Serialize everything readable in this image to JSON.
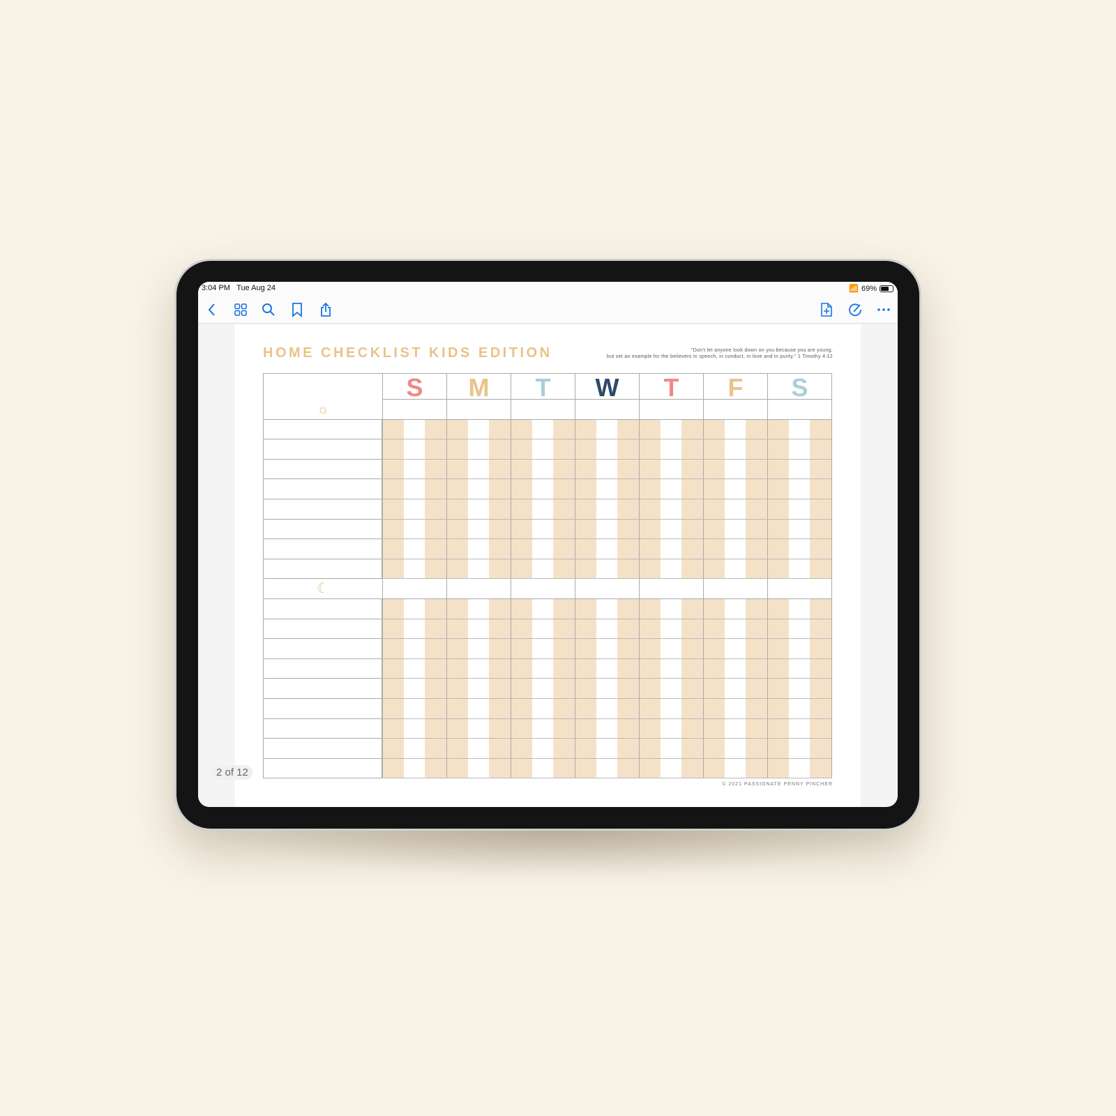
{
  "status_bar": {
    "time": "3:04 PM",
    "date": "Tue Aug 24",
    "battery": "69%",
    "battery_level": 0.69
  },
  "toolbar": {
    "left_icons": [
      "back-icon",
      "grid-icon",
      "search-icon",
      "bookmark-icon",
      "share-icon"
    ],
    "right_icons": [
      "add-page-icon",
      "markup-icon",
      "more-icon"
    ]
  },
  "document": {
    "title": "HOME CHECKLIST KIDS EDITION",
    "quote_line1": "\"Don't let anyone look down on you because you are young,",
    "quote_line2": "but set an example for the believers in speech, in conduct, in love and in purity.\" 1 Timothy 4:12",
    "days": [
      {
        "letter": "S",
        "color": "#ef8a88"
      },
      {
        "letter": "M",
        "color": "#e9c38a"
      },
      {
        "letter": "T",
        "color": "#a8d0d8"
      },
      {
        "letter": "W",
        "color": "#2d4b6a"
      },
      {
        "letter": "T",
        "color": "#ef8a88"
      },
      {
        "letter": "F",
        "color": "#e9c38a"
      },
      {
        "letter": "S",
        "color": "#a8d0d8"
      }
    ],
    "sections": [
      {
        "icon": "sun-icon",
        "rows": 8
      },
      {
        "icon": "moon-icon",
        "rows": 9
      }
    ],
    "footer": "© 2021 PASSIONATE PENNY PINCHER",
    "stripe_color": "#f4e2c8",
    "accent_color": "#e9c38a"
  },
  "page_indicator": "2 of 12"
}
